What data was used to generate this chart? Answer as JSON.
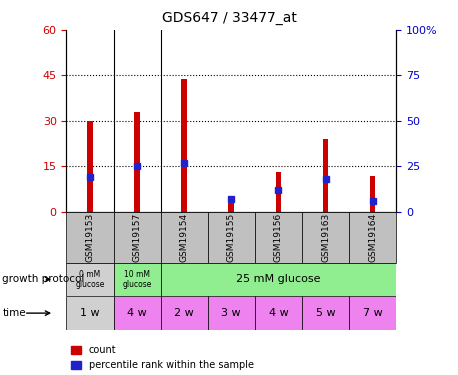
{
  "title": "GDS647 / 33477_at",
  "samples": [
    "GSM19153",
    "GSM19157",
    "GSM19154",
    "GSM19155",
    "GSM19156",
    "GSM19163",
    "GSM19164"
  ],
  "count_values": [
    30,
    33,
    44,
    5,
    13,
    24,
    12
  ],
  "percentile_values": [
    19,
    25,
    27,
    7,
    12,
    18,
    6
  ],
  "left_ylim": [
    0,
    60
  ],
  "right_ylim": [
    0,
    100
  ],
  "left_yticks": [
    0,
    15,
    30,
    45,
    60
  ],
  "right_yticks": [
    0,
    25,
    50,
    75,
    100
  ],
  "right_yticklabels": [
    "0",
    "25",
    "50",
    "75",
    "100%"
  ],
  "count_color": "#cc0000",
  "percentile_color": "#2222cc",
  "time_labels": [
    "1 w",
    "4 w",
    "2 w",
    "3 w",
    "4 w",
    "5 w",
    "7 w"
  ],
  "time_colors": [
    "#d0d0d0",
    "#ee82ee",
    "#ee82ee",
    "#ee82ee",
    "#ee82ee",
    "#ee82ee",
    "#ee82ee"
  ],
  "sample_bg_color": "#c0c0c0",
  "gp_col0_color": "#d0d0d0",
  "gp_col1_color": "#90ee90",
  "gp_col25_color": "#90ee90",
  "background_color": "#ffffff",
  "group_sep_after": [
    1,
    2
  ]
}
